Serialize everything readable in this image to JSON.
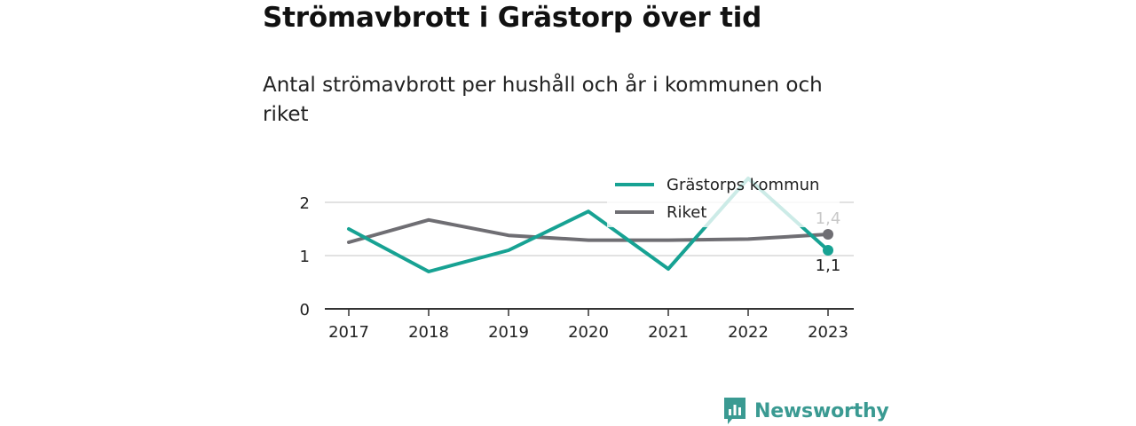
{
  "title": "Strömavbrott i Grästorp över tid",
  "subtitle": "Antal strömavbrott per hushåll och år i kommunen och riket",
  "brand": {
    "name": "Newsworthy",
    "icon": "newsworthy-logo-icon",
    "color": "#3a9a92"
  },
  "chart_data": {
    "type": "line",
    "title": "Strömavbrott i Grästorp över tid",
    "subtitle": "Antal strömavbrott per hushåll och år i kommunen och riket",
    "x": [
      "2017",
      "2018",
      "2019",
      "2020",
      "2021",
      "2022",
      "2023"
    ],
    "xlabel": "",
    "ylabel": "",
    "ylim": [
      0,
      2
    ],
    "yticks": [
      0,
      1,
      2
    ],
    "grid": true,
    "legend_position": "top-right",
    "series": [
      {
        "name": "Grästorps kommun",
        "color": "#17a293",
        "values": [
          1.5,
          0.7,
          1.1,
          1.83,
          0.75,
          2.45,
          1.1
        ],
        "end_label": "1,1"
      },
      {
        "name": "Riket",
        "color": "#6f6e73",
        "values": [
          1.25,
          1.67,
          1.38,
          1.29,
          1.29,
          1.31,
          1.4
        ],
        "end_label": "1,4"
      }
    ]
  }
}
